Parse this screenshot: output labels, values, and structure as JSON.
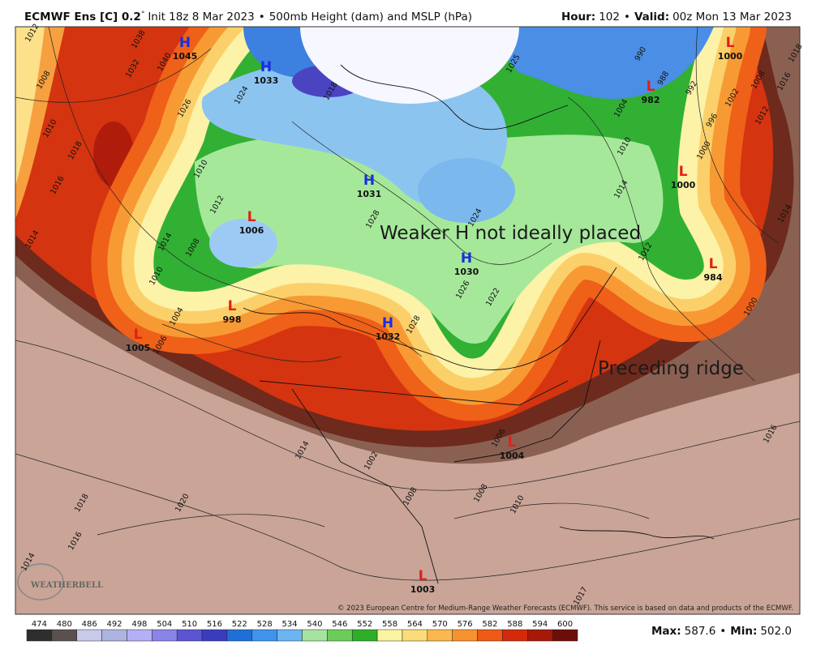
{
  "header": {
    "title": "ECMWF Ens [C] 0.2",
    "degree": "°",
    "init": "Init 18z 8 Mar 2023",
    "separator": "•",
    "product": "500mb Height (dam) and MSLP (hPa)",
    "hour_label": "Hour:",
    "hour": "102",
    "valid_label": "Valid:",
    "valid": "00z Mon 13 Mar 2023"
  },
  "annotations": [
    "Weaker H not ideally placed",
    "Preceding ridge"
  ],
  "pressure_centers": [
    {
      "kind": "H",
      "value": "1045"
    },
    {
      "kind": "H",
      "value": "1033"
    },
    {
      "kind": "H",
      "value": "1031"
    },
    {
      "kind": "H",
      "value": "1030"
    },
    {
      "kind": "H",
      "value": "1032"
    },
    {
      "kind": "L",
      "value": "1006"
    },
    {
      "kind": "L",
      "value": "998"
    },
    {
      "kind": "L",
      "value": "1005"
    },
    {
      "kind": "L",
      "value": "1000"
    },
    {
      "kind": "L",
      "value": "982"
    },
    {
      "kind": "L",
      "value": "1000"
    },
    {
      "kind": "L",
      "value": "984"
    },
    {
      "kind": "L",
      "value": "1004"
    },
    {
      "kind": "L",
      "value": "1003"
    }
  ],
  "contour_labels": [
    "1012",
    "1038",
    "1040",
    "1032",
    "1008",
    "1010",
    "1018",
    "1016",
    "1014",
    "1026",
    "1024",
    "1018",
    "1010",
    "1012",
    "1014",
    "1008",
    "1010",
    "1004",
    "1006",
    "1028",
    "1024",
    "1026",
    "1022",
    "1028",
    "1014",
    "1012",
    "1000",
    "1002",
    "1008",
    "1012",
    "1016",
    "1018",
    "1014",
    "1000",
    "1016",
    "1014",
    "1020",
    "1018",
    "1016",
    "1014",
    "1010",
    "1008",
    "1008",
    "1006",
    "1002",
    "1017",
    "990",
    "988",
    "992",
    "996",
    "1004",
    "1010",
    "1025"
  ],
  "copyright": "© 2023 European Centre for Medium-Range Weather Forecasts (ECMWF). This service is based on data and products of the ECMWF.",
  "logo": "WEATHERBELL",
  "colorbar": {
    "labels": [
      474,
      480,
      486,
      492,
      498,
      504,
      510,
      516,
      522,
      528,
      534,
      540,
      546,
      552,
      558,
      564,
      570,
      576,
      582,
      588,
      594,
      600
    ],
    "colors": [
      "#2e2e2e",
      "#5a5050",
      "#c9c9ea",
      "#aeb4e0",
      "#b4b0f5",
      "#8a84e8",
      "#5c55d2",
      "#3a3cc0",
      "#1f6fd8",
      "#3f93ee",
      "#6cb4f2",
      "#a6e3a0",
      "#6ccc5a",
      "#2fae2a",
      "#fbf4a2",
      "#fbdc78",
      "#fbb84e",
      "#f7922e",
      "#ef5a14",
      "#d42a0c",
      "#a81808",
      "#6e0e08"
    ]
  },
  "footer": {
    "max_label": "Max:",
    "max": "587.6",
    "separator": "•",
    "min_label": "Min:",
    "min": "502.0"
  }
}
